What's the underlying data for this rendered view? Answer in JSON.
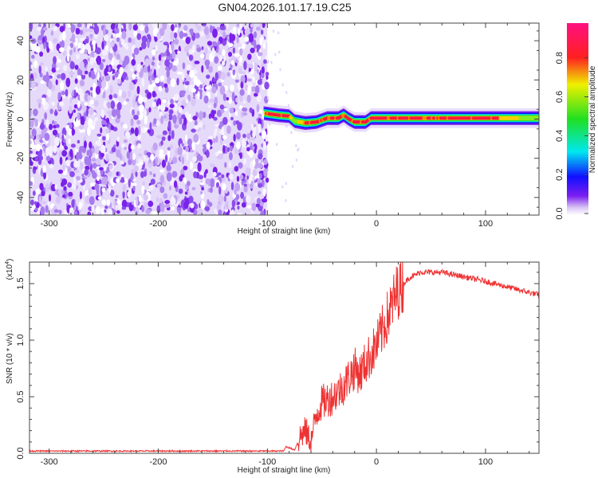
{
  "title": "GN04.2026.101.17.19.C25",
  "chart_data": [
    {
      "type": "heatmap",
      "name": "spectrogram",
      "xlabel": "Height of straight line (km)",
      "ylabel": "Frequency (Hz)",
      "xlim": [
        -318,
        149
      ],
      "ylim": [
        -49,
        49
      ],
      "xticks": [
        -300,
        -200,
        -100,
        0,
        100
      ],
      "yticks": [
        -40,
        -20,
        0,
        20,
        40
      ],
      "noise_region_x": [
        -318,
        -100
      ],
      "ridge": {
        "x": [
          -103,
          -90,
          -80,
          -75,
          -65,
          -55,
          -45,
          -35,
          -30,
          -25,
          -20,
          -10,
          -5,
          0,
          50,
          100,
          149
        ],
        "freq": [
          3,
          2,
          1.5,
          -1,
          -2,
          -1.5,
          0.5,
          0.5,
          2,
          0,
          -1.5,
          -1.5,
          0.5,
          0.5,
          0.5,
          0.5,
          0.5
        ],
        "amplitude": [
          0.9,
          0.9,
          0.85,
          0.6,
          0.9,
          0.9,
          0.95,
          0.95,
          0.9,
          0.9,
          0.9,
          0.9,
          0.95,
          0.95,
          0.95,
          0.95,
          0.55
        ]
      },
      "colorbar": {
        "label": "Normalized spectral amplitude",
        "ticks": [
          "0.0",
          "0.2",
          "0.4",
          "0.6",
          "0.8"
        ],
        "range": [
          0,
          1
        ]
      }
    },
    {
      "type": "line",
      "name": "snr",
      "xlabel": "Height of straight line (km)",
      "ylabel": "SNR (10 * v/v)",
      "multiplier": "(x10",
      "multiplier_exp": "4",
      "xlim": [
        -318,
        149
      ],
      "ylim": [
        0,
        1.69
      ],
      "xticks": [
        -300,
        -200,
        -100,
        0,
        100
      ],
      "yticks": [
        "0.0",
        "0.5",
        "1.0",
        "1.5"
      ],
      "color": "#ee3333",
      "x": [
        -318,
        -200,
        -85,
        -83,
        -75,
        -70,
        -65,
        -60,
        -55,
        -50,
        -40,
        -30,
        -20,
        -15,
        -10,
        0,
        10,
        20,
        30,
        40,
        60,
        80,
        100,
        120,
        149
      ],
      "y": [
        0.02,
        0.02,
        0.02,
        0.06,
        0.03,
        0.15,
        0.2,
        0.1,
        0.35,
        0.45,
        0.5,
        0.6,
        0.75,
        0.7,
        0.8,
        0.95,
        1.2,
        1.45,
        1.55,
        1.6,
        1.6,
        1.56,
        1.52,
        1.47,
        1.4
      ]
    }
  ]
}
